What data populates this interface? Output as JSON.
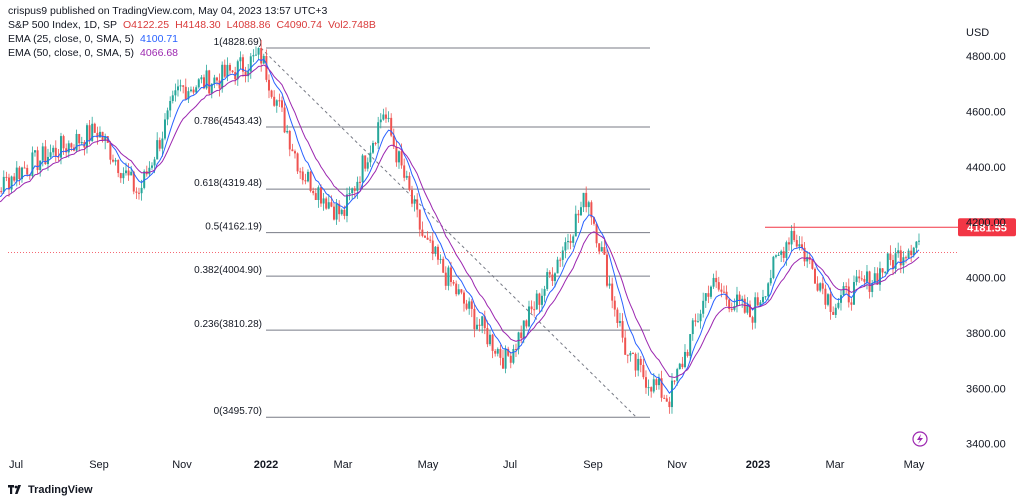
{
  "header": {
    "published": "crispus9 published on TradingView.com, May 04, 2023 13:57 UTC+3",
    "symbol": "S&P 500 Index, 1D, SP",
    "open": "O4122.25",
    "high": "H4148.30",
    "low": "L4088.86",
    "close": "C4090.74",
    "volume": "Vol2.748B",
    "ema25_label": "EMA (25, close, 0, SMA, 5)",
    "ema25_value": "4100.71",
    "ema50_label": "EMA (50, close, 0, SMA, 5)",
    "ema50_value": "4066.68"
  },
  "footer": {
    "brand": "TradingView"
  },
  "colors": {
    "up": "#26a69a",
    "down": "#ef5350",
    "ema25": "#2962ff",
    "ema50": "#9c27b0",
    "resistance": "#f23645",
    "fib": "#131722",
    "price_badge": "#f23645"
  },
  "chart_data": {
    "type": "candlestick",
    "currency": "USD",
    "yticks": [
      "4800.00",
      "4600.00",
      "4400.00",
      "4200.00",
      "4000.00",
      "3800.00",
      "3600.00",
      "3400.00"
    ],
    "ylim": [
      3370,
      4930
    ],
    "xticks": [
      "Jul",
      "Sep",
      "Nov",
      "2022",
      "Mar",
      "May",
      "Jul",
      "Sep",
      "Nov",
      "2023",
      "Mar",
      "May"
    ],
    "last_price": "4181.55",
    "resistance_level": 4181.55,
    "fib_levels": [
      {
        "label": "1(4828.69)",
        "value": 4828.69
      },
      {
        "label": "0.786(4543.43)",
        "value": 4543.43
      },
      {
        "label": "0.618(4319.48)",
        "value": 4319.48
      },
      {
        "label": "0.5(4162.19)",
        "value": 4162.19
      },
      {
        "label": "0.382(4004.90)",
        "value": 4004.9
      },
      {
        "label": "0.236(3810.28)",
        "value": 3810.28
      },
      {
        "label": "0(3495.70)",
        "value": 3495.7
      }
    ],
    "trend_line": {
      "from": [
        "2022-01",
        4828.69
      ],
      "to": [
        "2022-10",
        3495.7
      ]
    },
    "price_path": [
      [
        "2021-06",
        4240
      ],
      [
        "2021-07",
        4380
      ],
      [
        "2021-08",
        4460
      ],
      [
        "2021-09",
        4530
      ],
      [
        "2021-10",
        4300
      ],
      [
        "2021-11",
        4680
      ],
      [
        "2021-12",
        4720
      ],
      [
        "2022-01",
        4800
      ],
      [
        "2022-02",
        4380
      ],
      [
        "2022-03",
        4220
      ],
      [
        "2022-04",
        4600
      ],
      [
        "2022-05",
        4130
      ],
      [
        "2022-06",
        3900
      ],
      [
        "2022-07",
        3700
      ],
      [
        "2022-08",
        3980
      ],
      [
        "2022-09",
        4300
      ],
      [
        "2022-10",
        3700
      ],
      [
        "2022-11",
        3560
      ],
      [
        "2022-12",
        3980
      ],
      [
        "2023-01",
        3860
      ],
      [
        "2023-02",
        4170
      ],
      [
        "2023-03",
        3900
      ],
      [
        "2023-04",
        4000
      ],
      [
        "2023-05",
        4130
      ]
    ]
  }
}
